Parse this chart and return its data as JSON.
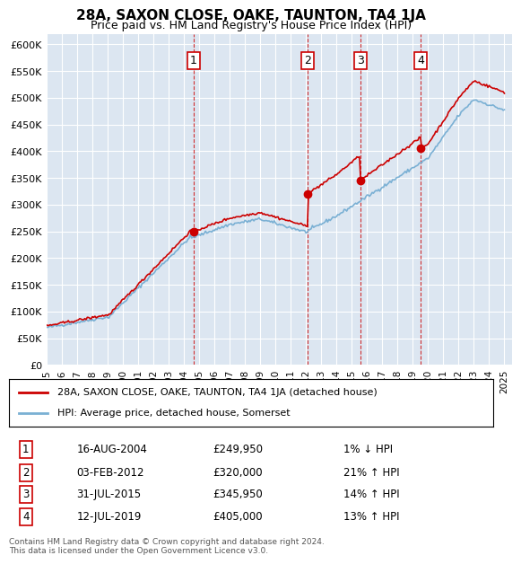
{
  "title": "28A, SAXON CLOSE, OAKE, TAUNTON, TA4 1JA",
  "subtitle": "Price paid vs. HM Land Registry's House Price Index (HPI)",
  "ylabel_ticks": [
    "£0",
    "£50K",
    "£100K",
    "£150K",
    "£200K",
    "£250K",
    "£300K",
    "£350K",
    "£400K",
    "£450K",
    "£500K",
    "£550K",
    "£600K"
  ],
  "ytick_values": [
    0,
    50000,
    100000,
    150000,
    200000,
    250000,
    300000,
    350000,
    400000,
    450000,
    500000,
    550000,
    600000
  ],
  "x_start_year": 1995,
  "x_end_year": 2025,
  "bg_color": "#dce6f1",
  "plot_bg": "#dce6f1",
  "legend_label_red": "28A, SAXON CLOSE, OAKE, TAUNTON, TA4 1JA (detached house)",
  "legend_label_blue": "HPI: Average price, detached house, Somerset",
  "transactions": [
    {
      "label": "1",
      "date": "16-AUG-2004",
      "x": 2004.62,
      "price": 249950,
      "pct": "1%",
      "dir": "↓"
    },
    {
      "label": "2",
      "date": "03-FEB-2012",
      "x": 2012.09,
      "price": 320000,
      "pct": "21%",
      "dir": "↑"
    },
    {
      "label": "3",
      "date": "31-JUL-2015",
      "x": 2015.58,
      "price": 345950,
      "pct": "14%",
      "dir": "↑"
    },
    {
      "label": "4",
      "date": "12-JUL-2019",
      "x": 2019.53,
      "price": 405000,
      "pct": "13%",
      "dir": "↑"
    }
  ],
  "table_rows": [
    [
      "1",
      "16-AUG-2004",
      "£249,950",
      "1% ↓ HPI"
    ],
    [
      "2",
      "03-FEB-2012",
      "£320,000",
      "21% ↑ HPI"
    ],
    [
      "3",
      "31-JUL-2015",
      "£345,950",
      "14% ↑ HPI"
    ],
    [
      "4",
      "12-JUL-2019",
      "£405,000",
      "13% ↑ HPI"
    ]
  ],
  "footer": "Contains HM Land Registry data © Crown copyright and database right 2024.\nThis data is licensed under the Open Government Licence v3.0.",
  "red_color": "#cc0000",
  "blue_color": "#7ab0d4"
}
